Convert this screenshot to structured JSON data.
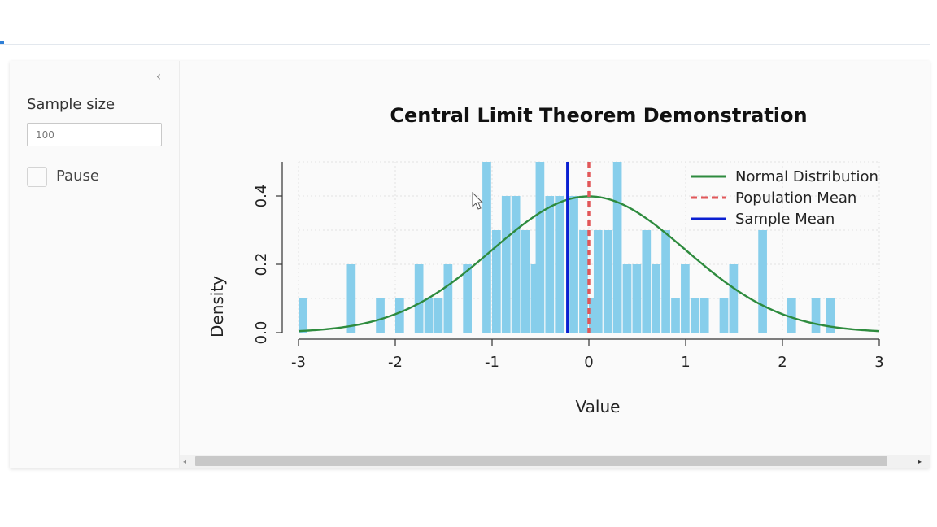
{
  "sidebar": {
    "collapse_icon": "chevron-left-icon",
    "sample_size_label": "Sample size",
    "sample_size_value": "100",
    "pause_label": "Pause",
    "pause_checked": false
  },
  "chart_data": {
    "type": "bar",
    "title": "Central Limit Theorem Demonstration",
    "xlabel": "Value",
    "ylabel": "Density",
    "xlim": [
      -3,
      3
    ],
    "ylim": [
      0,
      0.5
    ],
    "xticks": [
      "-3",
      "-2",
      "-1",
      "0",
      "1",
      "2",
      "3"
    ],
    "yticks": [
      "0.0",
      "0.2",
      "0.4"
    ],
    "grid": true,
    "legend_position": "top-right",
    "histogram": {
      "color": "#87ceeb",
      "bin_width": 0.1,
      "bins": [
        {
          "x": -3.0,
          "density": 0.1
        },
        {
          "x": -2.5,
          "density": 0.2
        },
        {
          "x": -2.2,
          "density": 0.1
        },
        {
          "x": -2.0,
          "density": 0.1
        },
        {
          "x": -1.8,
          "density": 0.2
        },
        {
          "x": -1.7,
          "density": 0.1
        },
        {
          "x": -1.6,
          "density": 0.1
        },
        {
          "x": -1.5,
          "density": 0.2
        },
        {
          "x": -1.3,
          "density": 0.2
        },
        {
          "x": -1.1,
          "density": 0.5
        },
        {
          "x": -1.0,
          "density": 0.3
        },
        {
          "x": -0.9,
          "density": 0.4
        },
        {
          "x": -0.8,
          "density": 0.4
        },
        {
          "x": -0.7,
          "density": 0.3
        },
        {
          "x": -0.6,
          "density": 0.2
        },
        {
          "x": -0.55,
          "density": 0.5
        },
        {
          "x": -0.45,
          "density": 0.4
        },
        {
          "x": -0.35,
          "density": 0.4
        },
        {
          "x": -0.2,
          "density": 0.4
        },
        {
          "x": -0.1,
          "density": 0.3
        },
        {
          "x": 0.0,
          "density": 0.1
        },
        {
          "x": 0.05,
          "density": 0.3
        },
        {
          "x": 0.15,
          "density": 0.3
        },
        {
          "x": 0.25,
          "density": 0.5
        },
        {
          "x": 0.35,
          "density": 0.2
        },
        {
          "x": 0.45,
          "density": 0.2
        },
        {
          "x": 0.55,
          "density": 0.3
        },
        {
          "x": 0.65,
          "density": 0.2
        },
        {
          "x": 0.75,
          "density": 0.3
        },
        {
          "x": 0.85,
          "density": 0.1
        },
        {
          "x": 0.95,
          "density": 0.2
        },
        {
          "x": 1.05,
          "density": 0.1
        },
        {
          "x": 1.15,
          "density": 0.1
        },
        {
          "x": 1.35,
          "density": 0.1
        },
        {
          "x": 1.45,
          "density": 0.2
        },
        {
          "x": 1.75,
          "density": 0.3
        },
        {
          "x": 2.05,
          "density": 0.1
        },
        {
          "x": 2.3,
          "density": 0.1
        },
        {
          "x": 2.45,
          "density": 0.1
        }
      ]
    },
    "series": [
      {
        "name": "Normal Distribution",
        "kind": "curve",
        "color": "#2e8b3e",
        "mean": 0,
        "sd": 1
      },
      {
        "name": "Population Mean",
        "kind": "vline",
        "color": "#e15759",
        "dashed": true,
        "x": 0
      },
      {
        "name": "Sample Mean",
        "kind": "vline",
        "color": "#0a1fd1",
        "dashed": false,
        "x": -0.22
      }
    ]
  },
  "scrollbar": {
    "left_arrow": "arrow-left-icon",
    "right_arrow": "arrow-right-icon"
  },
  "cursor": "mouse-pointer-icon"
}
